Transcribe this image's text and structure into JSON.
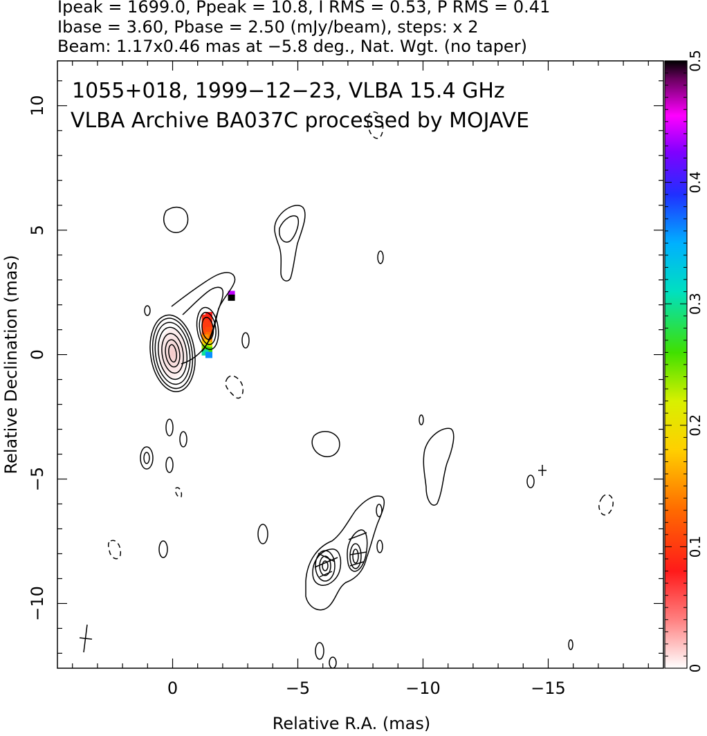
{
  "header": {
    "line1": "Ipeak = 1699.0, Ppeak = 10.8, I RMS = 0.53, P RMS = 0.41",
    "line2": "Ibase = 3.60, Pbase = 2.50 (mJy/beam), steps: x 2",
    "line3": "Beam: 1.17x0.46 mas at −5.8 deg., Nat. Wgt. (no taper)"
  },
  "chart_data": {
    "type": "contour",
    "title_line1": "1055+018, 1999−12−23, VLBA 15.4 GHz",
    "title_line2": "VLBA Archive BA037C processed by MOJAVE",
    "xlabel": "Relative R.A. (mas)",
    "ylabel": "Relative Declination (mas)",
    "xlim": [
      4.6,
      -19.6
    ],
    "ylim": [
      -12.6,
      11.8
    ],
    "x_ticks": [
      0,
      -5,
      -10,
      -15
    ],
    "x_tick_labels": [
      "0",
      "−5",
      "−10",
      "−15"
    ],
    "y_ticks": [
      -10,
      -5,
      0,
      5,
      10
    ],
    "y_tick_labels": [
      "−10",
      "−5",
      "0",
      "5",
      "10"
    ],
    "colorbar": {
      "range": [
        0,
        0.5
      ],
      "ticks": [
        0,
        0.1,
        0.2,
        0.3,
        0.4,
        0.5
      ],
      "tick_labels": [
        "0",
        "0.1",
        "0.2",
        "0.3",
        "0.4",
        "0.5"
      ]
    },
    "core_contours": [
      {
        "x": 0,
        "y": 0.05,
        "rx": 0.15,
        "ry": 0.35
      },
      {
        "x": 0,
        "y": 0.05,
        "rx": 0.28,
        "ry": 0.55
      },
      {
        "x": 0,
        "y": 0.05,
        "rx": 0.42,
        "ry": 0.8
      },
      {
        "x": 0,
        "y": 0.05,
        "rx": 0.56,
        "ry": 1.05
      },
      {
        "x": 0,
        "y": 0.05,
        "rx": 0.68,
        "ry": 1.25
      },
      {
        "x": 0,
        "y": 0.05,
        "rx": 0.78,
        "ry": 1.42
      },
      {
        "x": 0,
        "y": 0.05,
        "rx": 0.88,
        "ry": 1.55
      }
    ],
    "knot_contours": [
      {
        "x": -1.4,
        "y": 1.05,
        "rx": 0.22,
        "ry": 0.45
      },
      {
        "x": -1.4,
        "y": 1.05,
        "rx": 0.32,
        "ry": 0.65
      },
      {
        "x": -1.4,
        "y": 1.05,
        "rx": 0.42,
        "ry": 0.85
      }
    ],
    "polarization_pixels": [
      {
        "x": -1.45,
        "y": 1.6,
        "v": 0.08
      },
      {
        "x": -1.3,
        "y": 1.5,
        "v": 0.09
      },
      {
        "x": -1.45,
        "y": 1.4,
        "v": 0.09
      },
      {
        "x": -1.3,
        "y": 1.3,
        "v": 0.1
      },
      {
        "x": -1.45,
        "y": 1.2,
        "v": 0.1
      },
      {
        "x": -1.3,
        "y": 1.1,
        "v": 0.1
      },
      {
        "x": -1.45,
        "y": 1.0,
        "v": 0.11
      },
      {
        "x": -1.3,
        "y": 0.9,
        "v": 0.11
      },
      {
        "x": -1.45,
        "y": 0.8,
        "v": 0.13
      },
      {
        "x": -1.3,
        "y": 0.7,
        "v": 0.15
      },
      {
        "x": -1.45,
        "y": 0.6,
        "v": 0.15
      },
      {
        "x": -1.3,
        "y": 0.5,
        "v": 0.18
      },
      {
        "x": -1.45,
        "y": 0.4,
        "v": 0.21
      },
      {
        "x": -1.3,
        "y": 0.3,
        "v": 0.24
      },
      {
        "x": -1.45,
        "y": 0.2,
        "v": 0.26
      },
      {
        "x": -1.3,
        "y": 0.1,
        "v": 0.3
      },
      {
        "x": -1.45,
        "y": 0.0,
        "v": 0.36
      },
      {
        "x": -2.35,
        "y": 2.45,
        "v": 0.44
      },
      {
        "x": -2.35,
        "y": 2.3,
        "v": 0.5
      }
    ],
    "core_tint": {
      "x": 0,
      "y": 0.05,
      "rx": 0.55,
      "ry": 1.0
    }
  }
}
